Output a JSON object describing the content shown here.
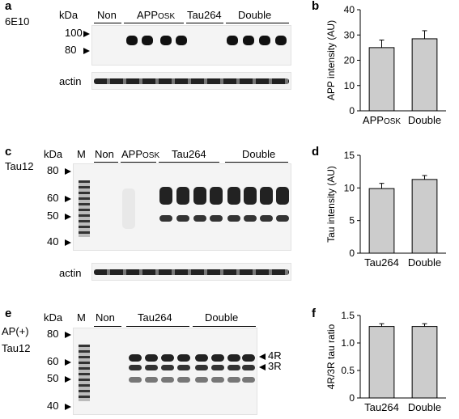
{
  "panels": {
    "a": {
      "letter": "a",
      "antibody": "6E10",
      "kda": "kDa",
      "mw_markers": [
        "100",
        "80"
      ],
      "groups": [
        {
          "name_main": "Non",
          "name_sub": ""
        },
        {
          "name_main": "APP",
          "name_sub": "OSK"
        },
        {
          "name_main": "Tau264",
          "name_sub": ""
        },
        {
          "name_main": "Double",
          "name_sub": ""
        }
      ],
      "loading": "actin"
    },
    "b": {
      "letter": "b"
    },
    "c": {
      "letter": "c",
      "antibody": "Tau12",
      "kda": "kDa",
      "lane_m": "M",
      "mw_markers": [
        "80",
        "60",
        "50",
        "40"
      ],
      "groups": [
        {
          "name_main": "Non",
          "name_sub": ""
        },
        {
          "name_main": "APP",
          "name_sub": "OSK"
        },
        {
          "name_main": "Tau264",
          "name_sub": ""
        },
        {
          "name_main": "Double",
          "name_sub": ""
        }
      ],
      "loading": "actin"
    },
    "d": {
      "letter": "d"
    },
    "e": {
      "letter": "e",
      "antibody_line1": "AP(+)",
      "antibody_line2": "Tau12",
      "kda": "kDa",
      "lane_m": "M",
      "mw_markers": [
        "80",
        "60",
        "50",
        "40"
      ],
      "groups": [
        {
          "name_main": "Non",
          "name_sub": ""
        },
        {
          "name_main": "Tau264",
          "name_sub": ""
        },
        {
          "name_main": "Double",
          "name_sub": ""
        }
      ],
      "isoforms": [
        "4R",
        "3R"
      ]
    },
    "f": {
      "letter": "f"
    }
  },
  "chart_data": [
    {
      "type": "bar",
      "panel": "b",
      "categories": [
        "APPOSK",
        "Double"
      ],
      "category_main": [
        "APP",
        "Double"
      ],
      "category_sub": [
        "OSK",
        ""
      ],
      "values": [
        25,
        28.5
      ],
      "errors": [
        3,
        3.2
      ],
      "ylabel": "APP intensity (AU)",
      "ylim": [
        0,
        40
      ],
      "yticks": [
        0,
        10,
        20,
        30,
        40
      ],
      "bar_color": "#cccccc"
    },
    {
      "type": "bar",
      "panel": "d",
      "categories": [
        "Tau264",
        "Double"
      ],
      "category_main": [
        "Tau264",
        "Double"
      ],
      "category_sub": [
        "",
        ""
      ],
      "values": [
        9.9,
        11.3
      ],
      "errors": [
        0.8,
        0.6
      ],
      "ylabel": "Tau intensity (AU)",
      "ylim": [
        0,
        15
      ],
      "yticks": [
        0,
        5,
        10,
        15
      ],
      "bar_color": "#cccccc"
    },
    {
      "type": "bar",
      "panel": "f",
      "categories": [
        "Tau264",
        "Double"
      ],
      "category_main": [
        "Tau264",
        "Double"
      ],
      "category_sub": [
        "",
        ""
      ],
      "values": [
        1.3,
        1.3
      ],
      "errors": [
        0.05,
        0.05
      ],
      "ylabel": "4R/3R tau ratio",
      "ylim": [
        0,
        1.5
      ],
      "yticks": [
        0,
        0.5,
        1.0,
        1.5
      ],
      "ytick_labels": [
        "0",
        "0.5",
        "1.0",
        "1.5"
      ],
      "bar_color": "#cccccc"
    }
  ]
}
